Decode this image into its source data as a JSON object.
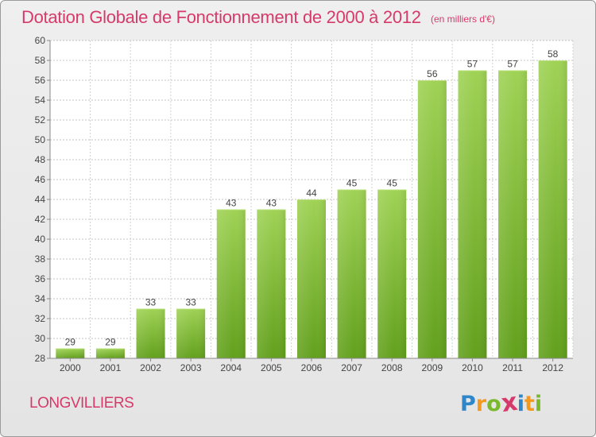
{
  "header": {
    "title": "Dotation Globale de Fonctionnement de 2000 à 2012",
    "subtitle": "(en milliers d'€)"
  },
  "footer": {
    "commune": "LONGVILLIERS",
    "logo": {
      "letters": [
        "P",
        "r",
        "o",
        "x",
        "i",
        "t",
        "i"
      ],
      "colors": [
        "#2f86c9",
        "#f39a1e",
        "#7ab82e",
        "#d63a6b",
        "#2f86c9",
        "#f39a1e",
        "#7ab82e"
      ]
    }
  },
  "chart_data": {
    "type": "bar",
    "categories": [
      "2000",
      "2001",
      "2002",
      "2003",
      "2004",
      "2005",
      "2006",
      "2007",
      "2008",
      "2009",
      "2010",
      "2011",
      "2012"
    ],
    "values": [
      29,
      29,
      33,
      33,
      43,
      43,
      44,
      45,
      45,
      56,
      57,
      57,
      58
    ],
    "ylim": [
      28,
      60
    ],
    "yticks": [
      28,
      30,
      32,
      34,
      36,
      38,
      40,
      42,
      44,
      46,
      48,
      50,
      52,
      54,
      56,
      58,
      60
    ],
    "grid": true,
    "bar_color": "#78b52e",
    "label_color": "#444444"
  }
}
